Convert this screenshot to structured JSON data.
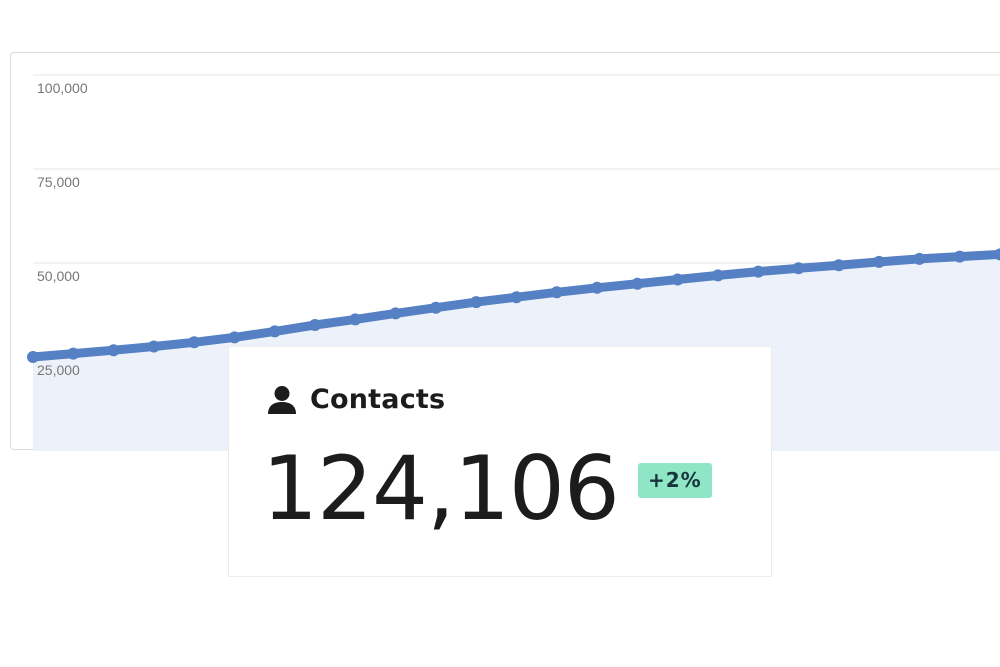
{
  "chart_data": {
    "type": "line",
    "y_ticks": [
      "100,000",
      "75,000",
      "50,000",
      "25,000"
    ],
    "y_tick_values": [
      100000,
      75000,
      50000,
      25000
    ],
    "ylim": [
      0,
      100000
    ],
    "grid": true,
    "series_color": "#5580c4",
    "fill_color": "#edf1f9",
    "points_y": [
      25000,
      25900,
      26800,
      27800,
      28900,
      30200,
      31800,
      33500,
      35000,
      36600,
      38100,
      39600,
      40900,
      42200,
      43400,
      44500,
      45600,
      46700,
      47700,
      48600,
      49400,
      50300,
      51100,
      51700,
      52300
    ]
  },
  "card": {
    "icon": "person-icon",
    "title": "Contacts",
    "value": "124,106",
    "change": "+2%",
    "change_color": "#8ee6c7"
  }
}
